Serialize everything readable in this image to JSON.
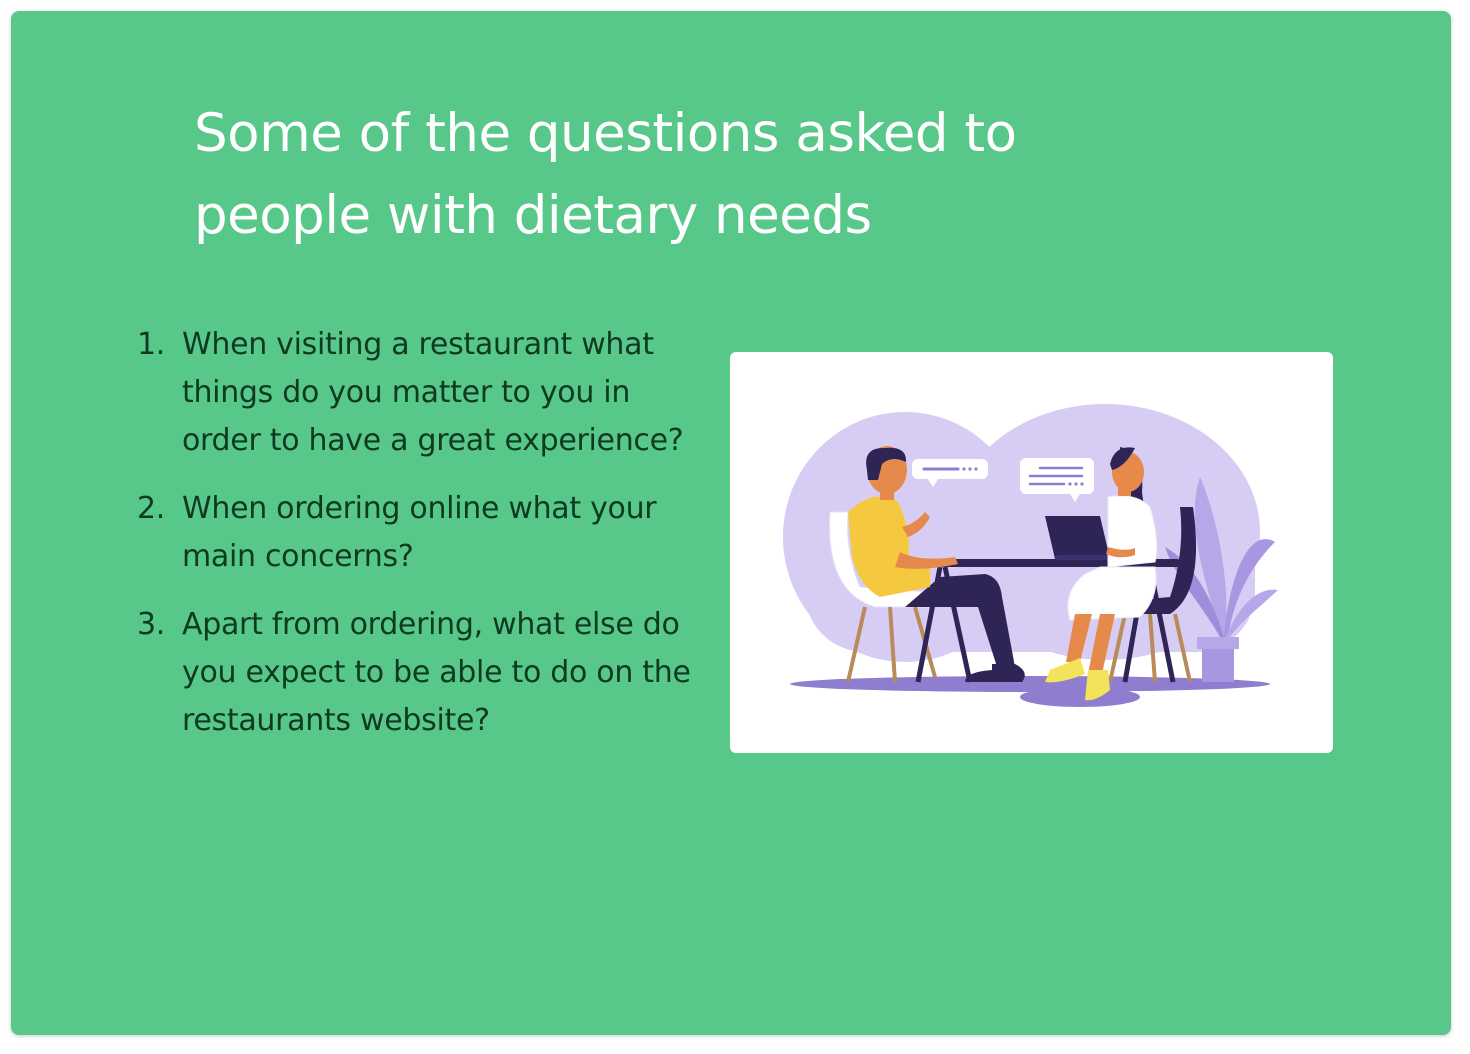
{
  "slide": {
    "title": "Some of the questions asked to people with dietary needs",
    "questions": [
      {
        "number": "1.",
        "text": "When visiting a restaurant what things do you matter to you in order to have a great experience?"
      },
      {
        "number": "2.",
        "text": "When ordering online what your main concerns?"
      },
      {
        "number": "3.",
        "text": "Apart from ordering, what else do you expect to be able to do on the restaurants website?"
      }
    ],
    "illustration": {
      "icon": "interview-illustration",
      "colors": {
        "background": "#58c88a",
        "question_text": "#0e3a22",
        "blob": "#d7cdf4",
        "floor": "#8f7dd0",
        "shirt_man": "#f4c93f",
        "shirt_woman": "#ffffff",
        "trousers": "#2e2456",
        "plant": "#b7a7e8"
      }
    }
  }
}
